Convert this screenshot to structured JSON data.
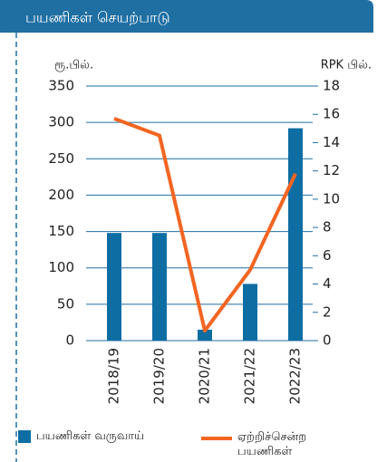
{
  "chart_data": {
    "type": "bar_line",
    "title": "பயணிகள் செயற்பாடு",
    "y_label": "ரூ.பில்.",
    "y2_label": "RPK பில்.",
    "categories": [
      "2018/19",
      "2019/20",
      "2020/21",
      "2021/22",
      "2022/23"
    ],
    "series": [
      {
        "name": "பயணிகள் வருவாய்",
        "color": "#0e6ea4",
        "type": "bar",
        "values": [
          148,
          148,
          15,
          78,
          292
        ]
      },
      {
        "name": "ஏற்றிச்சென்ற பயணிகள்",
        "color": "#f26522",
        "type": "line",
        "axis": "y2",
        "values": [
          15.7,
          14.5,
          0.7,
          5,
          11.8
        ]
      }
    ],
    "ylim": [
      0,
      350
    ],
    "yticks": [
      0,
      50,
      100,
      150,
      200,
      250,
      300,
      350
    ],
    "y2lim": [
      0,
      18
    ],
    "y2ticks": [
      0,
      2,
      4,
      6,
      8,
      10,
      12,
      14,
      16,
      18
    ],
    "grid": true
  }
}
